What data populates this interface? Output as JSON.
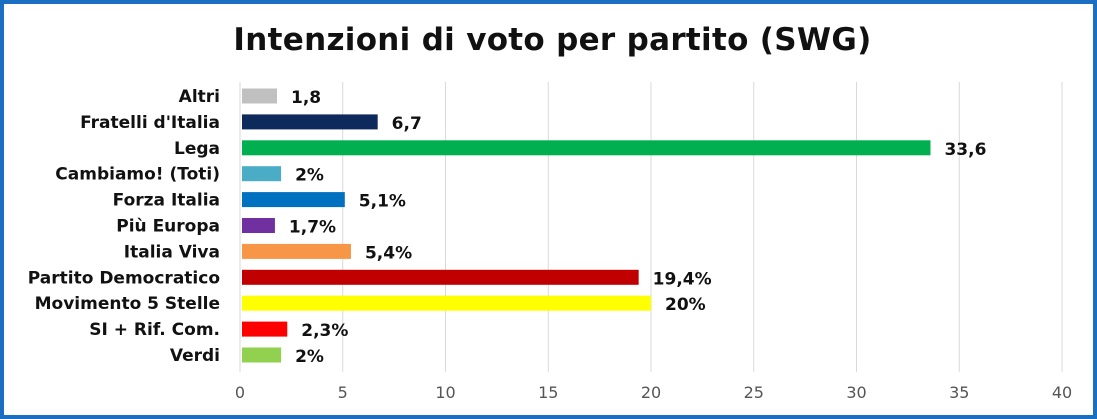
{
  "chart_data": {
    "type": "bar",
    "orientation": "horizontal",
    "title": "Intenzioni di voto per partito (SWG)",
    "xlabel": "",
    "ylabel": "",
    "xlim": [
      0,
      40
    ],
    "ticks": [
      "0",
      "5",
      "10",
      "15",
      "20",
      "25",
      "30",
      "35",
      "40"
    ],
    "grid": true,
    "legend": "none",
    "categories": [
      "Altri",
      "Fratelli d'Italia",
      "Lega",
      "Cambiamo! (Toti)",
      "Forza Italia",
      "Più Europa",
      "Italia Viva",
      "Partito Democratico",
      "Movimento 5 Stelle",
      "SI + Rif. Com.",
      "Verdi"
    ],
    "values": [
      1.8,
      6.7,
      33.6,
      2,
      5.1,
      1.7,
      5.4,
      19.4,
      20,
      2.3,
      2
    ],
    "data_labels": [
      "1,8",
      "6,7",
      "33,6",
      "2%",
      "5,1%",
      "1,7%",
      "5,4%",
      "19,4%",
      "20%",
      "2,3%",
      "2%"
    ],
    "colors": [
      "#c0c0c0",
      "#0e2a5c",
      "#00b050",
      "#4bacc6",
      "#0070c0",
      "#7030a0",
      "#f79646",
      "#c00000",
      "#ffff00",
      "#ff0000",
      "#92d050"
    ]
  },
  "frame_color": "#1a6fc2"
}
